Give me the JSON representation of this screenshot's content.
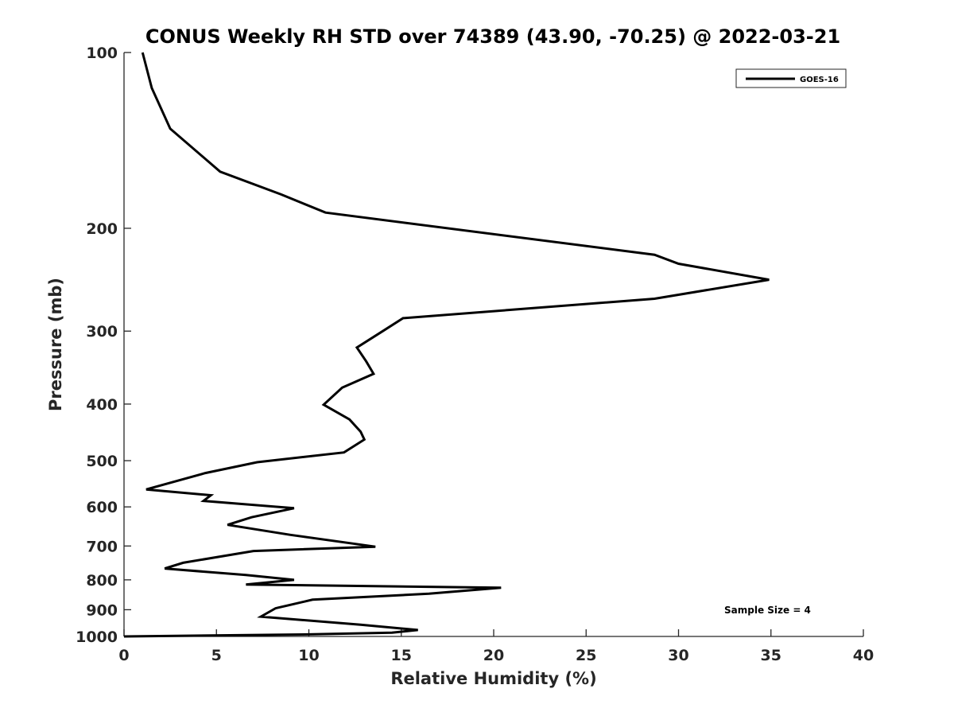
{
  "chart_data": {
    "type": "line",
    "title": "CONUS Weekly RH STD over 74389 (43.90, -70.25) @ 2022-03-21",
    "xlabel": "Relative Humidity (%)",
    "ylabel": "Pressure (mb)",
    "xlim": [
      0,
      40
    ],
    "ylim": [
      100,
      1000
    ],
    "yscale": "log",
    "y_reversed": true,
    "xticks": [
      "0",
      "5",
      "10",
      "15",
      "20",
      "25",
      "30",
      "35",
      "40"
    ],
    "yticks": [
      "100",
      "200",
      "300",
      "400",
      "500",
      "600",
      "700",
      "800",
      "900",
      "1000"
    ],
    "grid": false,
    "legend_position": "top-right",
    "annotation": "Sample Size = 4",
    "series": [
      {
        "name": "GOES-16",
        "color": "#000000",
        "points": [
          [
            1.0,
            100
          ],
          [
            1.5,
            115
          ],
          [
            2.5,
            135
          ],
          [
            5.2,
            160
          ],
          [
            8.5,
            175
          ],
          [
            10.9,
            188
          ],
          [
            28.7,
            222
          ],
          [
            30.0,
            230
          ],
          [
            34.9,
            245
          ],
          [
            28.7,
            264
          ],
          [
            15.1,
            285
          ],
          [
            14.0,
            300
          ],
          [
            12.6,
            320
          ],
          [
            13.1,
            338
          ],
          [
            13.5,
            355
          ],
          [
            11.8,
            375
          ],
          [
            10.8,
            401
          ],
          [
            12.2,
            425
          ],
          [
            12.8,
            446
          ],
          [
            13.0,
            460
          ],
          [
            11.9,
            484
          ],
          [
            7.2,
            503
          ],
          [
            4.4,
            525
          ],
          [
            1.2,
            560
          ],
          [
            4.7,
            573
          ],
          [
            4.3,
            586
          ],
          [
            9.2,
            603
          ],
          [
            6.9,
            625
          ],
          [
            5.6,
            644
          ],
          [
            9.0,
            670
          ],
          [
            13.6,
            702
          ],
          [
            7.0,
            714
          ],
          [
            3.2,
            748
          ],
          [
            2.2,
            765
          ],
          [
            6.6,
            785
          ],
          [
            9.2,
            800
          ],
          [
            6.6,
            815
          ],
          [
            20.4,
            825
          ],
          [
            16.5,
            845
          ],
          [
            10.2,
            865
          ],
          [
            8.2,
            895
          ],
          [
            7.4,
            925
          ],
          [
            12.8,
            955
          ],
          [
            15.9,
            975
          ],
          [
            14.5,
            985
          ],
          [
            10.0,
            992
          ],
          [
            0.0,
            1000
          ]
        ]
      }
    ]
  }
}
